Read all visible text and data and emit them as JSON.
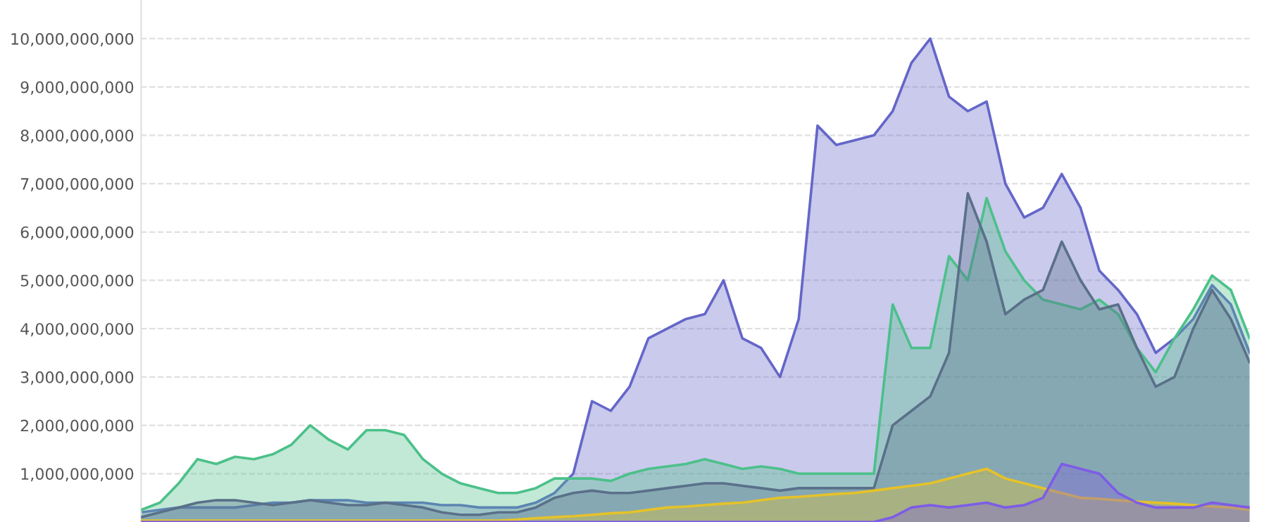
{
  "chart_data": {
    "type": "area",
    "categories": [
      null,
      null,
      null,
      null,
      null,
      null,
      null,
      null,
      null,
      null,
      null,
      null,
      null,
      null,
      null,
      null,
      null,
      null,
      null,
      null,
      null,
      null,
      null,
      null,
      null,
      null,
      null,
      null,
      null,
      null,
      null,
      null,
      null,
      null,
      null,
      null,
      null,
      null,
      null,
      null,
      null,
      null,
      null,
      null,
      null,
      null,
      null,
      null,
      null,
      null,
      null,
      null,
      null,
      null,
      null,
      null,
      null,
      null,
      null,
      null
    ],
    "ylim": [
      0,
      10800000000.0
    ],
    "yticks": [
      {
        "value": 1000000000.0,
        "label": "1,000,000,000"
      },
      {
        "value": 2000000000.0,
        "label": "2,000,000,000"
      },
      {
        "value": 3000000000.0,
        "label": "3,000,000,000"
      },
      {
        "value": 4000000000.0,
        "label": "4,000,000,000"
      },
      {
        "value": 5000000000.0,
        "label": "5,000,000,000"
      },
      {
        "value": 6000000000.0,
        "label": "6,000,000,000"
      },
      {
        "value": 7000000000.0,
        "label": "7,000,000,000"
      },
      {
        "value": 8000000000.0,
        "label": "8,000,000,000"
      },
      {
        "value": 9000000000.0,
        "label": "9,000,000,000"
      },
      {
        "value": 10000000000.0,
        "label": "10,000,000,000"
      }
    ],
    "grid": "y",
    "tick_labels": "y",
    "line_style": "dashed",
    "series": [
      {
        "color": "#6466c8",
        "values": [
          200000000.0,
          250000000.0,
          300000000.0,
          300000000.0,
          300000000.0,
          300000000.0,
          350000000.0,
          400000000.0,
          400000000.0,
          450000000.0,
          450000000.0,
          450000000.0,
          400000000.0,
          400000000.0,
          400000000.0,
          400000000.0,
          350000000.0,
          350000000.0,
          300000000.0,
          300000000.0,
          300000000.0,
          400000000.0,
          600000000.0,
          1000000000.0,
          2500000000.0,
          2300000000.0,
          2800000000.0,
          3800000000.0,
          4000000000.0,
          4200000000.0,
          4300000000.0,
          5000000000.0,
          3800000000.0,
          3600000000.0,
          3000000000.0,
          4200000000.0,
          8200000000.0,
          7800000000.0,
          7900000000.0,
          8000000000.0,
          8500000000.0,
          9500000000.0,
          10000000000.0,
          8800000000.0,
          8500000000.0,
          8700000000.0,
          7000000000.0,
          6300000000.0,
          6500000000.0,
          7200000000.0,
          6500000000.0,
          5200000000.0,
          4800000000.0,
          4300000000.0,
          3500000000.0,
          3800000000.0,
          4200000000.0,
          4900000000.0,
          4500000000.0,
          3500000000.0
        ]
      },
      {
        "color": "#4cc08a",
        "values": [
          250000000.0,
          400000000.0,
          800000000.0,
          1300000000.0,
          1200000000.0,
          1350000000.0,
          1300000000.0,
          1400000000.0,
          1600000000.0,
          2000000000.0,
          1700000000.0,
          1500000000.0,
          1900000000.0,
          1900000000.0,
          1800000000.0,
          1300000000.0,
          1000000000.0,
          800000000.0,
          700000000.0,
          600000000.0,
          600000000.0,
          700000000.0,
          900000000.0,
          900000000.0,
          900000000.0,
          850000000.0,
          1000000000.0,
          1100000000.0,
          1150000000.0,
          1200000000.0,
          1300000000.0,
          1200000000.0,
          1100000000.0,
          1150000000.0,
          1100000000.0,
          1000000000.0,
          1000000000.0,
          1000000000.0,
          1000000000.0,
          1000000000.0,
          4500000000.0,
          3600000000.0,
          3600000000.0,
          5500000000.0,
          5000000000.0,
          6700000000.0,
          5600000000.0,
          5000000000.0,
          4600000000.0,
          4500000000.0,
          4400000000.0,
          4600000000.0,
          4300000000.0,
          3600000000.0,
          3100000000.0,
          3800000000.0,
          4400000000.0,
          5100000000.0,
          4800000000.0,
          3800000000.0
        ]
      },
      {
        "color": "#5a7089",
        "values": [
          100000000.0,
          200000000.0,
          300000000.0,
          400000000.0,
          450000000.0,
          450000000.0,
          400000000.0,
          350000000.0,
          400000000.0,
          450000000.0,
          400000000.0,
          350000000.0,
          350000000.0,
          400000000.0,
          350000000.0,
          300000000.0,
          200000000.0,
          150000000.0,
          150000000.0,
          200000000.0,
          200000000.0,
          300000000.0,
          500000000.0,
          600000000.0,
          650000000.0,
          600000000.0,
          600000000.0,
          650000000.0,
          700000000.0,
          750000000.0,
          800000000.0,
          800000000.0,
          750000000.0,
          700000000.0,
          650000000.0,
          700000000.0,
          700000000.0,
          700000000.0,
          700000000.0,
          700000000.0,
          2000000000.0,
          2300000000.0,
          2600000000.0,
          3500000000.0,
          6800000000.0,
          5800000000.0,
          4300000000.0,
          4600000000.0,
          4800000000.0,
          5800000000.0,
          5000000000.0,
          4400000000.0,
          4500000000.0,
          3600000000.0,
          2800000000.0,
          3000000000.0,
          4000000000.0,
          4800000000.0,
          4200000000.0,
          3300000000.0
        ]
      },
      {
        "color": "#e6c229",
        "values": [
          30000000.0,
          30000000.0,
          30000000.0,
          30000000.0,
          30000000.0,
          30000000.0,
          30000000.0,
          30000000.0,
          30000000.0,
          30000000.0,
          30000000.0,
          30000000.0,
          30000000.0,
          30000000.0,
          30000000.0,
          30000000.0,
          30000000.0,
          30000000.0,
          30000000.0,
          30000000.0,
          50000000.0,
          80000000.0,
          100000000.0,
          120000000.0,
          150000000.0,
          180000000.0,
          200000000.0,
          250000000.0,
          300000000.0,
          320000000.0,
          350000000.0,
          380000000.0,
          400000000.0,
          450000000.0,
          500000000.0,
          520000000.0,
          550000000.0,
          580000000.0,
          600000000.0,
          650000000.0,
          700000000.0,
          750000000.0,
          800000000.0,
          900000000.0,
          1000000000.0,
          1100000000.0,
          900000000.0,
          800000000.0,
          700000000.0,
          600000000.0,
          500000000.0,
          480000000.0,
          450000000.0,
          420000000.0,
          400000000.0,
          380000000.0,
          350000000.0,
          320000000.0,
          300000000.0,
          250000000.0
        ]
      },
      {
        "color": "#7d5ce6",
        "values": [
          0,
          0,
          0,
          0,
          0,
          0,
          0,
          0,
          0,
          0,
          0,
          0,
          0,
          0,
          0,
          0,
          0,
          0,
          0,
          0,
          0,
          0,
          0,
          0,
          0,
          0,
          0,
          0,
          0,
          0,
          0,
          0,
          0,
          0,
          0,
          0,
          0,
          0,
          0,
          0,
          100000000.0,
          300000000.0,
          350000000.0,
          300000000.0,
          350000000.0,
          400000000.0,
          300000000.0,
          350000000.0,
          500000000.0,
          1200000000.0,
          1100000000.0,
          1000000000.0,
          600000000.0,
          400000000.0,
          300000000.0,
          300000000.0,
          300000000.0,
          400000000.0,
          350000000.0,
          300000000.0
        ]
      }
    ]
  }
}
